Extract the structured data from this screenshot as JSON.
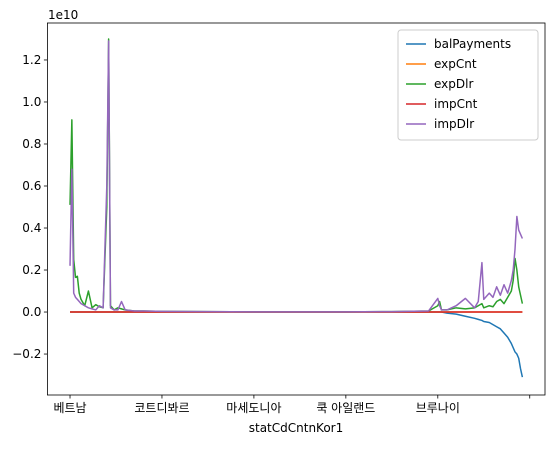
{
  "chart_data": {
    "type": "line",
    "offset_text": "1e10",
    "x_label": "statCdCntnKor1",
    "x": [
      0,
      1,
      2,
      3,
      4,
      5,
      6,
      8,
      10,
      12,
      14,
      16,
      18,
      20,
      21,
      22,
      24,
      26,
      28,
      30,
      35,
      40,
      50,
      75,
      100,
      125,
      150,
      175,
      195,
      200,
      201,
      202,
      205,
      210,
      215,
      220,
      222,
      224,
      225,
      228,
      230,
      232,
      234,
      236,
      238,
      240,
      241,
      242,
      243,
      244,
      245,
      246
    ],
    "xlim": [
      -12.3,
      258.3
    ],
    "xticks": [
      {
        "value": 0,
        "label": "베트남"
      },
      {
        "value": 50,
        "label": "코트디봐르"
      },
      {
        "value": 100,
        "label": "마세도니아"
      },
      {
        "value": 150,
        "label": "쿡 아일랜드"
      },
      {
        "value": 200,
        "label": "브루나이"
      },
      {
        "value": 250,
        "label": null
      }
    ],
    "ylim": [
      -0.395,
      1.376
    ],
    "yticks": [
      {
        "value": -0.2,
        "label": "−0.2"
      },
      {
        "value": 0,
        "label": "0.0"
      },
      0.2,
      0.4,
      0.6,
      0.8,
      {
        "value": 1,
        "label": "1.0"
      },
      1.2
    ],
    "legend": "upper right",
    "series": [
      {
        "name": "balPayments",
        "color": "#1f77b4",
        "values": [
          0,
          0,
          0,
          0,
          0,
          0,
          0,
          0,
          0,
          0,
          0,
          0,
          0,
          0,
          0,
          0,
          0,
          0,
          0,
          0,
          0,
          0,
          0,
          0,
          0,
          0,
          0,
          0,
          0,
          0,
          0,
          0,
          -0.005,
          -0.01,
          -0.02,
          -0.03,
          -0.035,
          -0.04,
          -0.045,
          -0.05,
          -0.06,
          -0.07,
          -0.08,
          -0.1,
          -0.12,
          -0.15,
          -0.17,
          -0.19,
          -0.2,
          -0.22,
          -0.27,
          -0.31
        ]
      },
      {
        "name": "expCnt",
        "color": "#ff7f0e",
        "values": [
          0,
          0,
          0,
          0,
          0,
          0,
          0,
          0,
          0,
          0,
          0,
          0,
          0,
          0,
          0,
          0,
          0,
          0,
          0,
          0,
          0,
          0,
          0,
          0,
          0,
          0,
          0,
          0,
          0,
          0,
          0,
          0,
          0,
          0,
          0,
          0,
          0,
          0,
          0,
          0,
          0,
          0,
          0,
          0,
          0,
          0,
          0,
          0,
          0,
          0,
          0,
          0
        ]
      },
      {
        "name": "expDlr",
        "color": "#2ca02c",
        "values": [
          0.51,
          0.915,
          0.25,
          0.165,
          0.17,
          0.09,
          0.06,
          0.03,
          0.1,
          0.02,
          0.035,
          0.025,
          0.02,
          0.5,
          1.3,
          0.03,
          0.01,
          0.02,
          0.015,
          0.01,
          0.005,
          0.005,
          0.003,
          0.002,
          0.001,
          0.001,
          0.001,
          0.002,
          0.005,
          0.03,
          0.05,
          0.01,
          0.01,
          0.02,
          0.015,
          0.02,
          0.03,
          0.04,
          0.02,
          0.03,
          0.025,
          0.05,
          0.06,
          0.04,
          0.07,
          0.1,
          0.15,
          0.255,
          0.2,
          0.12,
          0.08,
          0.04
        ]
      },
      {
        "name": "impCnt",
        "color": "#d62728",
        "values": [
          0,
          0,
          0,
          0,
          0,
          0,
          0,
          0,
          0,
          0,
          0,
          0,
          0,
          0,
          0,
          0,
          0,
          0,
          0,
          0,
          0,
          0,
          0,
          0,
          0,
          0,
          0,
          0,
          0,
          0,
          0,
          0,
          0,
          0,
          0,
          0,
          0,
          0,
          0,
          0,
          0,
          0,
          0,
          0,
          0,
          0,
          0,
          0,
          0,
          0,
          0,
          0
        ]
      },
      {
        "name": "impDlr",
        "color": "#9467bd",
        "values": [
          0.22,
          0.68,
          0.09,
          0.07,
          0.06,
          0.05,
          0.04,
          0.03,
          0.02,
          0.015,
          0.01,
          0.03,
          0.02,
          0.6,
          1.29,
          0.02,
          0.01,
          0.01,
          0.05,
          0.01,
          0.005,
          0.005,
          0.003,
          0.002,
          0.001,
          0.001,
          0.001,
          0.002,
          0.005,
          0.065,
          0.03,
          0.01,
          0.01,
          0.03,
          0.065,
          0.02,
          0.05,
          0.235,
          0.06,
          0.09,
          0.07,
          0.12,
          0.08,
          0.13,
          0.09,
          0.15,
          0.2,
          0.3,
          0.455,
          0.39,
          0.37,
          0.35
        ]
      }
    ]
  }
}
